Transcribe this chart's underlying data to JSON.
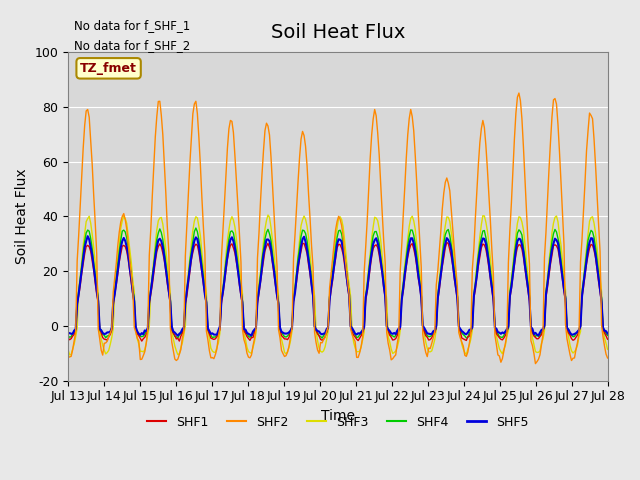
{
  "title": "Soil Heat Flux",
  "xlabel": "Time",
  "ylabel": "Soil Heat Flux",
  "ylim": [
    -20,
    100
  ],
  "yticks": [
    -20,
    0,
    20,
    40,
    60,
    80,
    100
  ],
  "start_day": 13,
  "end_day": 28,
  "colors": {
    "SHF1": "#dd0000",
    "SHF2": "#ff8800",
    "SHF3": "#dddd00",
    "SHF4": "#00cc00",
    "SHF5": "#0000dd"
  },
  "legend_entries": [
    "SHF1",
    "SHF2",
    "SHF3",
    "SHF4",
    "SHF5"
  ],
  "no_data_texts": [
    "No data for f_SHF_1",
    "No data for f_SHF_2"
  ],
  "tz_label": "TZ_fmet",
  "bg_color": "#e8e8e8",
  "plot_bg_color": "#d8d8d8",
  "title_fontsize": 14,
  "label_fontsize": 10,
  "tick_fontsize": 9
}
